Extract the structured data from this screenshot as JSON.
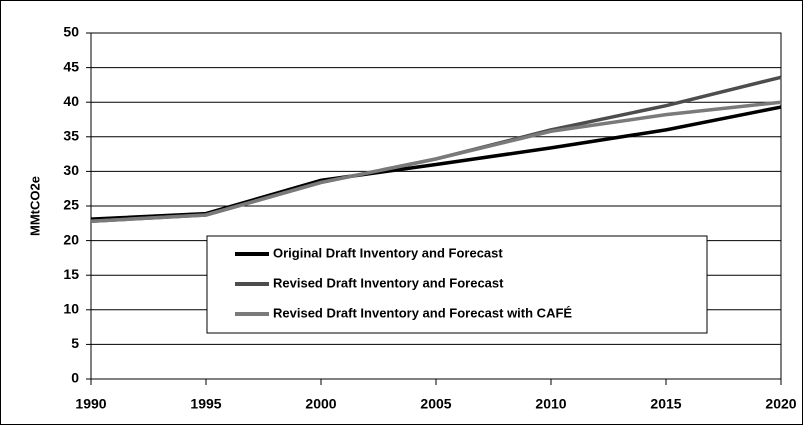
{
  "chart_data": {
    "type": "line",
    "x": [
      1990,
      1995,
      2000,
      2005,
      2010,
      2015,
      2020
    ],
    "ylabel": "MMtCO2e",
    "series": [
      {
        "name": "Original Draft Inventory and Forecast",
        "color": "#000000",
        "values": [
          23.1,
          23.9,
          28.7,
          31.0,
          33.4,
          36.0,
          39.3
        ]
      },
      {
        "name": "Revised Draft Inventory and Forecast",
        "color": "#4d4d4d",
        "values": [
          22.8,
          23.7,
          28.4,
          31.8,
          36.0,
          39.5,
          43.6
        ]
      },
      {
        "name": "Revised Draft Inventory and Forecast with CAFÉ",
        "color": "#7a7a7a",
        "values": [
          22.8,
          23.7,
          28.4,
          31.8,
          35.8,
          38.2,
          40.0
        ]
      }
    ],
    "xlim": [
      1990,
      2020
    ],
    "xticks": [
      1990,
      1995,
      2000,
      2005,
      2010,
      2015,
      2020
    ],
    "ylim": [
      0,
      50
    ],
    "yticks": [
      0,
      5,
      10,
      15,
      20,
      25,
      30,
      35,
      40,
      45,
      50
    ],
    "grid": true,
    "legend": "center"
  }
}
